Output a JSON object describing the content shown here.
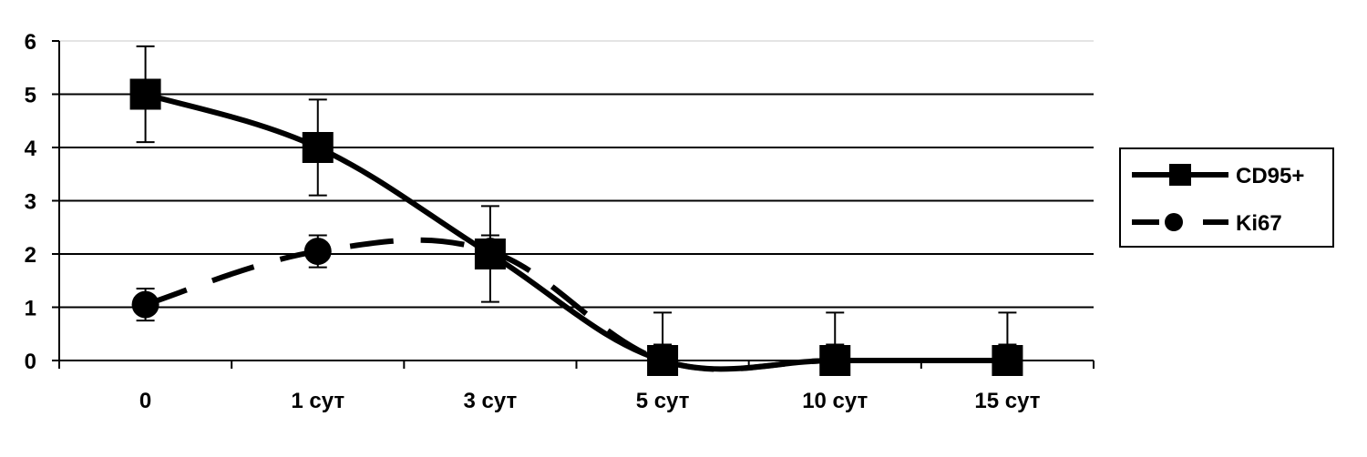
{
  "chart_data": {
    "type": "line",
    "categories": [
      "0",
      "1 сут",
      "3 сут",
      "5 сут",
      "10 сут",
      "15 сут"
    ],
    "ylim": [
      0,
      6
    ],
    "yticks": [
      "0",
      "1",
      "2",
      "3",
      "4",
      "5",
      "6"
    ],
    "grid": true,
    "legend_position": "right",
    "series": [
      {
        "name": "CD95+",
        "values": [
          5.0,
          4.0,
          2.0,
          0.0,
          0.0,
          0.0
        ],
        "error": [
          0.9,
          0.9,
          0.9,
          0.9,
          0.9,
          0.9
        ],
        "marker": "square",
        "line_style": "solid",
        "color": "#000000"
      },
      {
        "name": "Ki67",
        "values": [
          1.05,
          2.05,
          2.05,
          0.0,
          0.0,
          0.0
        ],
        "error": [
          0.3,
          0.3,
          0.3,
          0.3,
          0.3,
          0.3
        ],
        "marker": "circle",
        "line_style": "dashed",
        "color": "#000000"
      }
    ],
    "xlabel": "",
    "ylabel": "",
    "title": ""
  }
}
